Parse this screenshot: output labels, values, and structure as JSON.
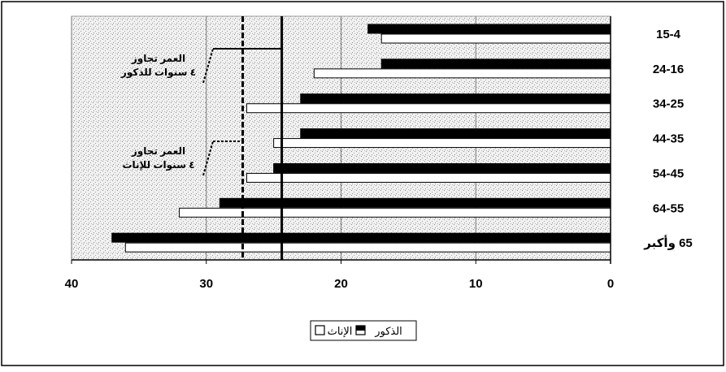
{
  "chart_data": {
    "type": "bar",
    "orientation": "horizontal",
    "x_axis_direction": "right-to-left",
    "categories": [
      "15-4",
      "24-16",
      "34-25",
      "44-35",
      "54-45",
      "64-55",
      "65 وأكبر"
    ],
    "series": [
      {
        "name": "الذكور",
        "color": "#000000",
        "values": [
          18,
          17,
          23,
          23,
          25,
          29,
          37
        ]
      },
      {
        "name": "الإناث",
        "color": "#ffffff",
        "values": [
          17,
          22,
          27,
          25,
          27,
          32,
          36
        ]
      }
    ],
    "xlim": [
      0,
      40
    ],
    "xticks": [
      "0",
      "10",
      "20",
      "30",
      "40"
    ],
    "reference_lines": [
      {
        "value": 24.4,
        "style": "solid",
        "label_lines": [
          "العمر تجاوز",
          "٤ سنوات للذكور"
        ]
      },
      {
        "value": 27.3,
        "style": "dashed",
        "label_lines": [
          "العمر تجاوز",
          "٤ سنوات للإناث"
        ]
      }
    ],
    "grid": true,
    "legend_position": "bottom-center",
    "plot_background": "stippled-gray"
  }
}
